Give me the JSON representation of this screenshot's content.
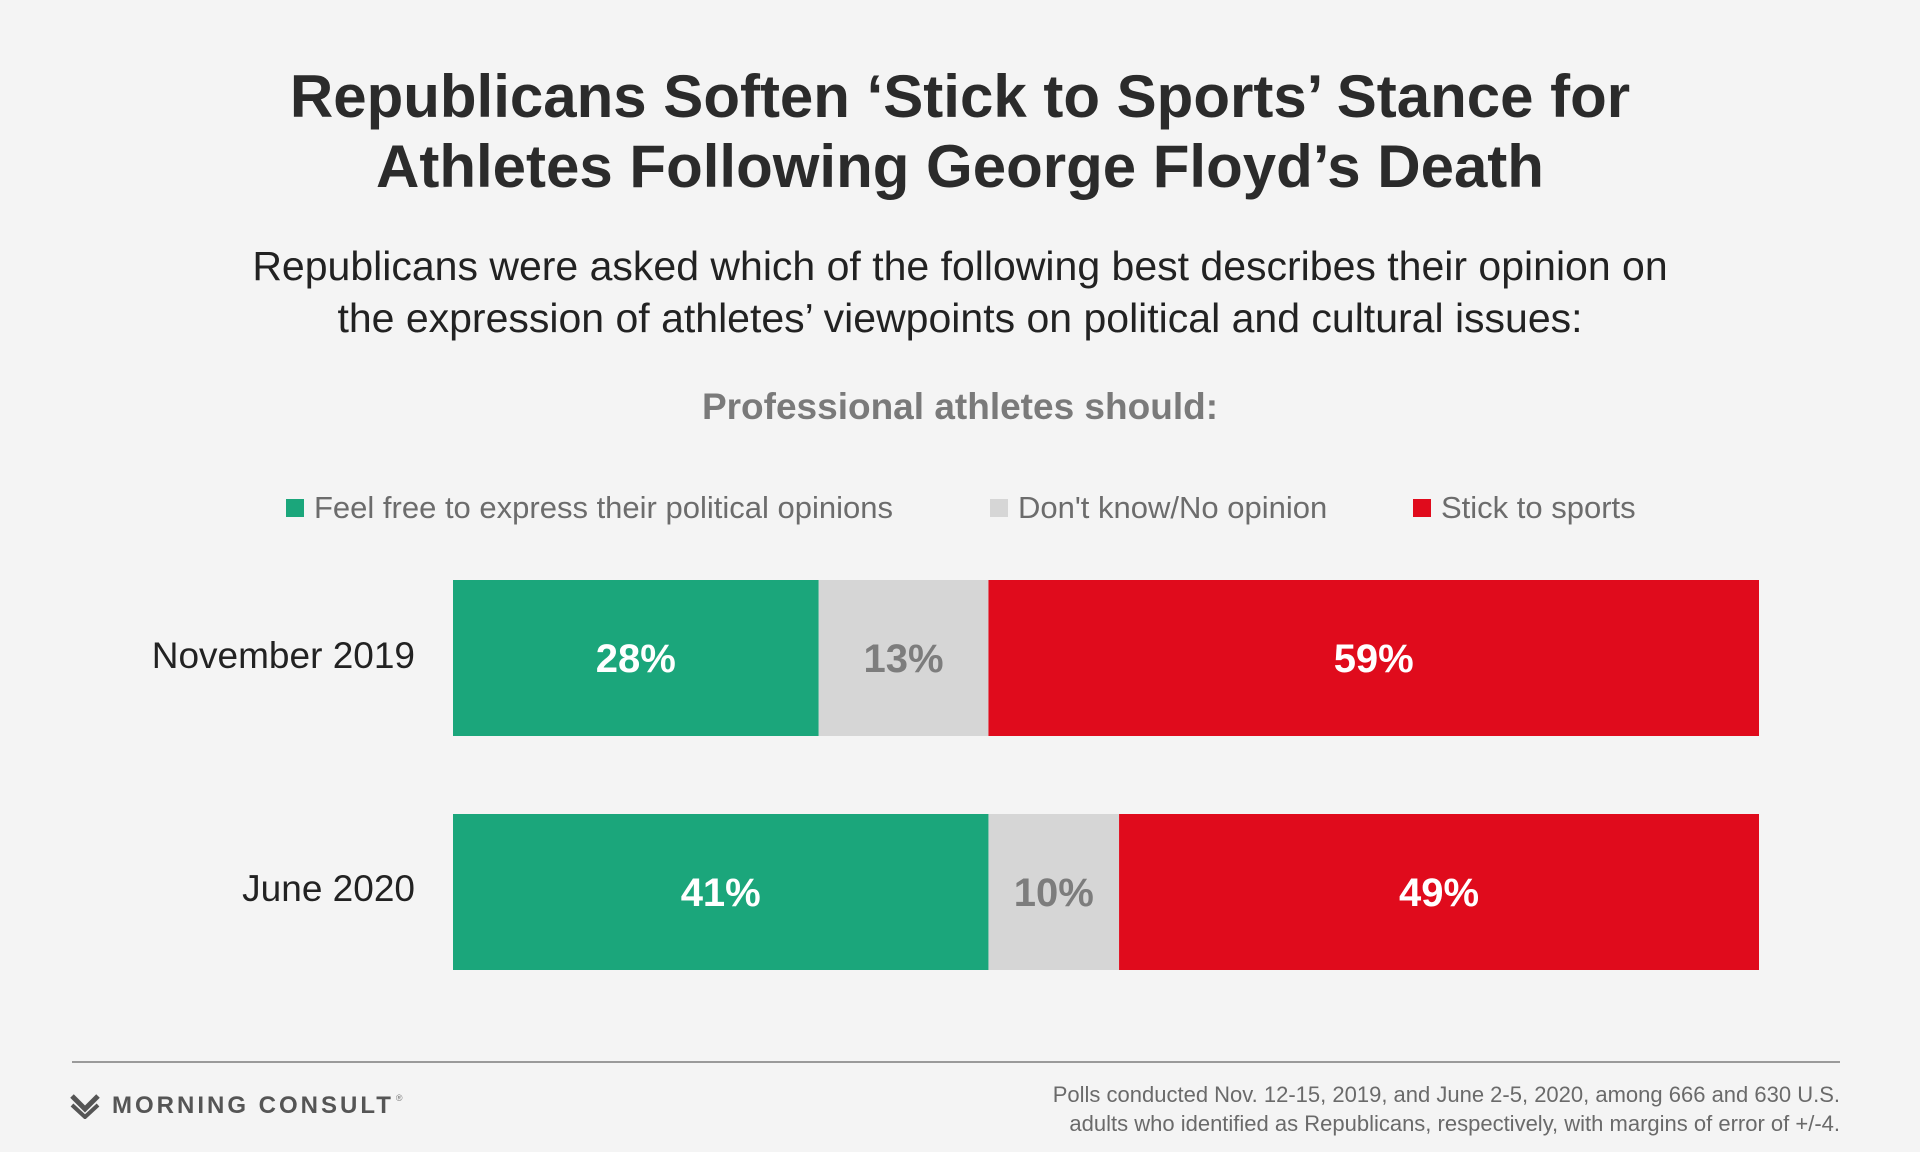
{
  "chart_data": {
    "type": "bar",
    "stacked": true,
    "orientation": "horizontal",
    "title": "Republicans Soften ‘Stick to Sports’ Stance for Athletes Following George Floyd’s Death",
    "title_lines": [
      "Republicans Soften ‘Stick to Sports’ Stance for",
      "Athletes Following George Floyd’s Death"
    ],
    "subtitle_lines": [
      "Republicans were asked which of the following best describes their opinion on",
      "the expression of athletes’ viewpoints on political and cultural issues:"
    ],
    "question": "Professional athletes should:",
    "categories": [
      "November 2019",
      "June 2020"
    ],
    "series": [
      {
        "name": "Feel free to express their political opinions",
        "color": "#1ba67b",
        "label_color": "#ffffff",
        "values": [
          28,
          41
        ],
        "labels": [
          "28%",
          "41%"
        ]
      },
      {
        "name": "Don't know/No opinion",
        "color": "#d6d6d6",
        "label_color": "#7d7d7d",
        "values": [
          13,
          10
        ],
        "labels": [
          "13%",
          "10%"
        ]
      },
      {
        "name": "Stick to sports",
        "color": "#e00b1c",
        "label_color": "#ffffff",
        "values": [
          59,
          49
        ],
        "labels": [
          "59%",
          "49%"
        ]
      }
    ],
    "xlim": [
      0,
      100
    ],
    "legend_position": "top",
    "grid": false
  },
  "footer": {
    "brand": "MORNING CONSULT",
    "brand_mark": "®",
    "brand_icon": "chevron-m-logo-icon",
    "note_lines": [
      "Polls conducted Nov. 12-15, 2019, and June 2-5, 2020, among 666 and 630 U.S.",
      "adults who identified as Republicans, respectively, with margins of error of +/-4."
    ]
  }
}
